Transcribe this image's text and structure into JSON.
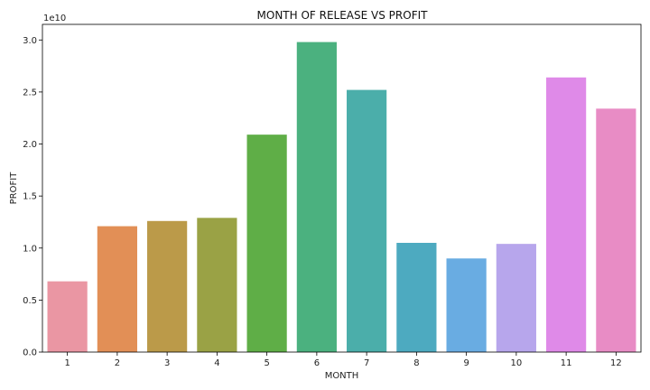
{
  "chart_data": {
    "type": "bar",
    "title": "MONTH OF RELEASE VS PROFIT",
    "xlabel": "MONTH",
    "ylabel": "PROFIT",
    "y_offset_label": "1e10",
    "categories": [
      "1",
      "2",
      "3",
      "4",
      "5",
      "6",
      "7",
      "8",
      "9",
      "10",
      "11",
      "12"
    ],
    "values": [
      6.8,
      12.1,
      12.6,
      12.9,
      20.9,
      29.8,
      25.2,
      10.5,
      9.0,
      10.4,
      26.4,
      23.4
    ],
    "value_unit_multiplier": 1000000000,
    "ylim": [
      0,
      31.5
    ],
    "yticks": [
      0,
      5,
      10,
      15,
      20,
      25,
      30
    ],
    "ytick_labels": [
      "0.0",
      "0.5",
      "1.0",
      "1.5",
      "2.0",
      "2.5",
      "3.0"
    ],
    "colors": [
      "#ea96a3",
      "#e28f56",
      "#bb9a49",
      "#9aa245",
      "#5fae47",
      "#4bb17f",
      "#4baeaa",
      "#4daac0",
      "#69ace2",
      "#b7a6ec",
      "#df8ae8",
      "#e88cc5"
    ],
    "grid": false,
    "legend": "none"
  }
}
